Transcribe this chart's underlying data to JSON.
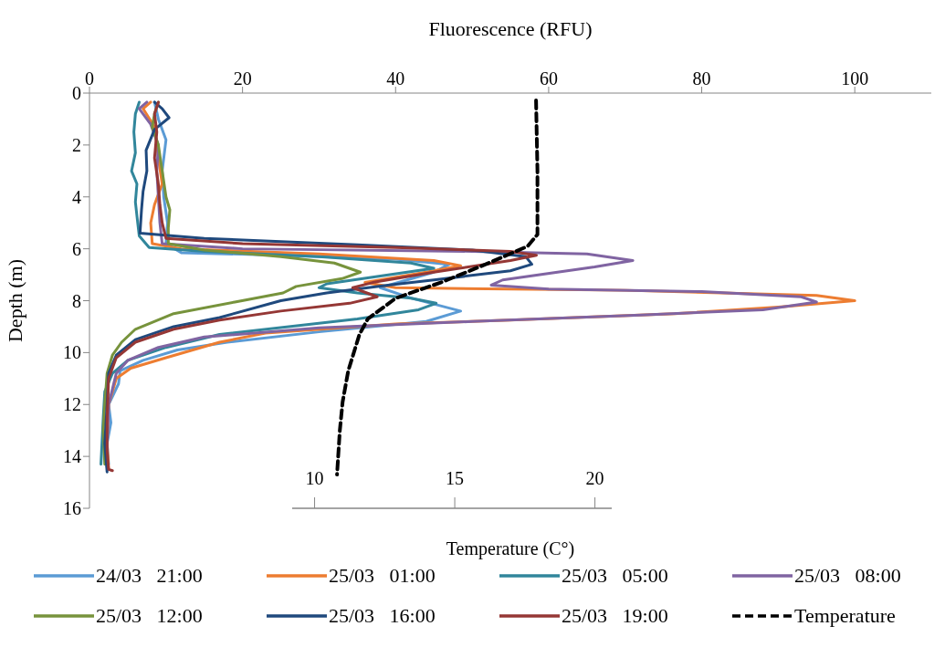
{
  "chart_data": {
    "type": "line",
    "xlabel": "Fluorescence (RFU)",
    "ylabel": "Depth (m)",
    "x2label": "Temperature (C°)",
    "xlim": [
      0,
      110
    ],
    "xticks": [
      0,
      20,
      40,
      60,
      80,
      100
    ],
    "ylim": [
      16,
      0
    ],
    "yticks": [
      0,
      2,
      4,
      6,
      8,
      10,
      12,
      14,
      16
    ],
    "x2lim": [
      9.2,
      20.6
    ],
    "x2ticks": [
      10,
      15,
      20
    ],
    "legend": "bottom",
    "grid": false,
    "line_style": "solid",
    "series": [
      {
        "name": "24/03   21:00",
        "color": "#5b9bd5",
        "x": [
          8.5,
          9,
          10,
          9.5,
          9.7,
          10.2,
          10,
          12,
          25,
          40,
          47,
          45,
          38,
          42,
          48.5,
          44,
          30,
          18,
          11.5,
          7,
          4,
          3.8,
          2.5,
          2.8,
          2.3,
          2.5
        ],
        "values": [
          0.35,
          1,
          1.8,
          3,
          4,
          5,
          5.8,
          6.15,
          6.25,
          6.4,
          6.6,
          6.9,
          7.5,
          7.9,
          8.4,
          8.8,
          9.2,
          9.6,
          9.9,
          10.3,
          10.7,
          11.2,
          12,
          12.7,
          13.5,
          14.3
        ]
      },
      {
        "name": "25/03   01:00",
        "color": "#ed7d31",
        "x": [
          8,
          7,
          8.5,
          9,
          9.5,
          8.5,
          8,
          8.2,
          12,
          30,
          45,
          48.5,
          44,
          36,
          40,
          70,
          95,
          100,
          90,
          76.5,
          55,
          40,
          23,
          17,
          10,
          5.4,
          3.5,
          2.5,
          2.3,
          2.5
        ],
        "values": [
          0.35,
          0.6,
          1.3,
          2.5,
          3.5,
          4.3,
          5,
          5.8,
          6,
          6.2,
          6.45,
          6.65,
          6.9,
          7.3,
          7.5,
          7.6,
          7.8,
          8,
          8.25,
          8.5,
          8.75,
          8.9,
          9.25,
          9.6,
          10.2,
          10.6,
          11,
          12,
          13.5,
          14.5
        ]
      },
      {
        "name": "25/03   05:00",
        "color": "#31869b",
        "x": [
          6.5,
          6,
          5.8,
          6,
          5.5,
          6.2,
          6,
          6.3,
          6.5,
          7.8,
          15,
          30,
          42,
          45,
          38,
          31,
          30,
          35,
          42,
          45.3,
          43,
          35,
          17,
          10,
          5,
          3,
          2,
          1.8,
          1.5
        ],
        "values": [
          0.35,
          0.8,
          1.5,
          2.3,
          3,
          3.5,
          4.2,
          5,
          5.5,
          5.95,
          6.1,
          6.3,
          6.55,
          6.75,
          7.05,
          7.35,
          7.5,
          7.7,
          7.9,
          8.1,
          8.35,
          8.7,
          9.3,
          9.8,
          10.3,
          10.8,
          11.5,
          12.5,
          14.3
        ]
      },
      {
        "name": "25/03   08:00",
        "color": "#8064a2",
        "x": [
          7.5,
          6.5,
          8,
          9,
          8.8,
          9,
          9.2,
          9.5,
          20,
          50,
          65,
          71,
          66,
          54,
          52.5,
          60,
          80,
          93,
          95,
          88,
          72,
          50,
          30,
          15,
          9,
          5,
          3.5,
          2.5,
          2.3,
          2.3
        ],
        "values": [
          0.35,
          0.6,
          1.2,
          2,
          3,
          4,
          5,
          5.8,
          6,
          6.1,
          6.2,
          6.45,
          6.7,
          7.2,
          7.4,
          7.55,
          7.65,
          7.85,
          8.05,
          8.35,
          8.55,
          8.8,
          9.05,
          9.4,
          9.8,
          10.3,
          10.8,
          12,
          13.5,
          14.4
        ]
      },
      {
        "name": "25/03   12:00",
        "color": "#77933c",
        "x": [
          9,
          8.5,
          8.2,
          9,
          9.5,
          10,
          10.5,
          10.3,
          10.3,
          15,
          25,
          32,
          35.4,
          33,
          27,
          25.3,
          19,
          11,
          6,
          4.2,
          3,
          2.3,
          2,
          1.8,
          2
        ],
        "values": [
          0.35,
          0.8,
          1.3,
          2,
          3,
          4,
          4.5,
          5.2,
          5.8,
          6.05,
          6.3,
          6.55,
          6.9,
          7.15,
          7.45,
          7.7,
          8.05,
          8.5,
          9.1,
          9.6,
          10.1,
          10.8,
          12,
          13,
          14.3
        ]
      },
      {
        "name": "25/03   16:00",
        "color": "#1f497d",
        "x": [
          8.5,
          9.5,
          10.4,
          8.5,
          7.4,
          7.5,
          7,
          6.8,
          6.6,
          15,
          35,
          50,
          57,
          57.8,
          55,
          45,
          39,
          31,
          25,
          17,
          11,
          6,
          3.5,
          2.5,
          2.3,
          2,
          2.3
        ],
        "values": [
          0.35,
          0.6,
          0.95,
          1.4,
          2.2,
          3,
          3.8,
          4.5,
          5.4,
          5.6,
          5.85,
          6.05,
          6.3,
          6.6,
          6.85,
          7.2,
          7.4,
          7.7,
          8,
          8.65,
          9,
          9.5,
          10.1,
          10.8,
          12,
          13.5,
          14.6
        ]
      },
      {
        "name": "25/03   19:00",
        "color": "#953735",
        "x": [
          9,
          8.5,
          8.8,
          8.5,
          9,
          9.2,
          9.5,
          10,
          20,
          40,
          55,
          58.4,
          55,
          45,
          37,
          34.4,
          37.6,
          34,
          25,
          17,
          11,
          6,
          3.5,
          2.5,
          2.3,
          2.3,
          2.5,
          3
        ],
        "values": [
          0.35,
          0.8,
          1.5,
          2.5,
          3.5,
          4.3,
          5,
          5.6,
          5.8,
          5.95,
          6.1,
          6.25,
          6.45,
          6.9,
          7.3,
          7.5,
          7.85,
          8.1,
          8.4,
          8.75,
          9.1,
          9.6,
          10.2,
          11,
          12.5,
          13.8,
          14.5,
          14.55
        ]
      },
      {
        "name": "Temperature",
        "color": "#000000",
        "axis": "x2",
        "line_style": "dashed",
        "x": [
          17.9,
          17.95,
          17.95,
          17.6,
          16.1,
          14.5,
          12.9,
          11.9,
          11.6,
          11.2,
          11,
          10.9,
          10.8
        ],
        "values": [
          0.28,
          3,
          5.45,
          5.9,
          6.6,
          7.3,
          7.9,
          8.7,
          9.3,
          10.7,
          11.9,
          13,
          14.7
        ]
      }
    ]
  }
}
